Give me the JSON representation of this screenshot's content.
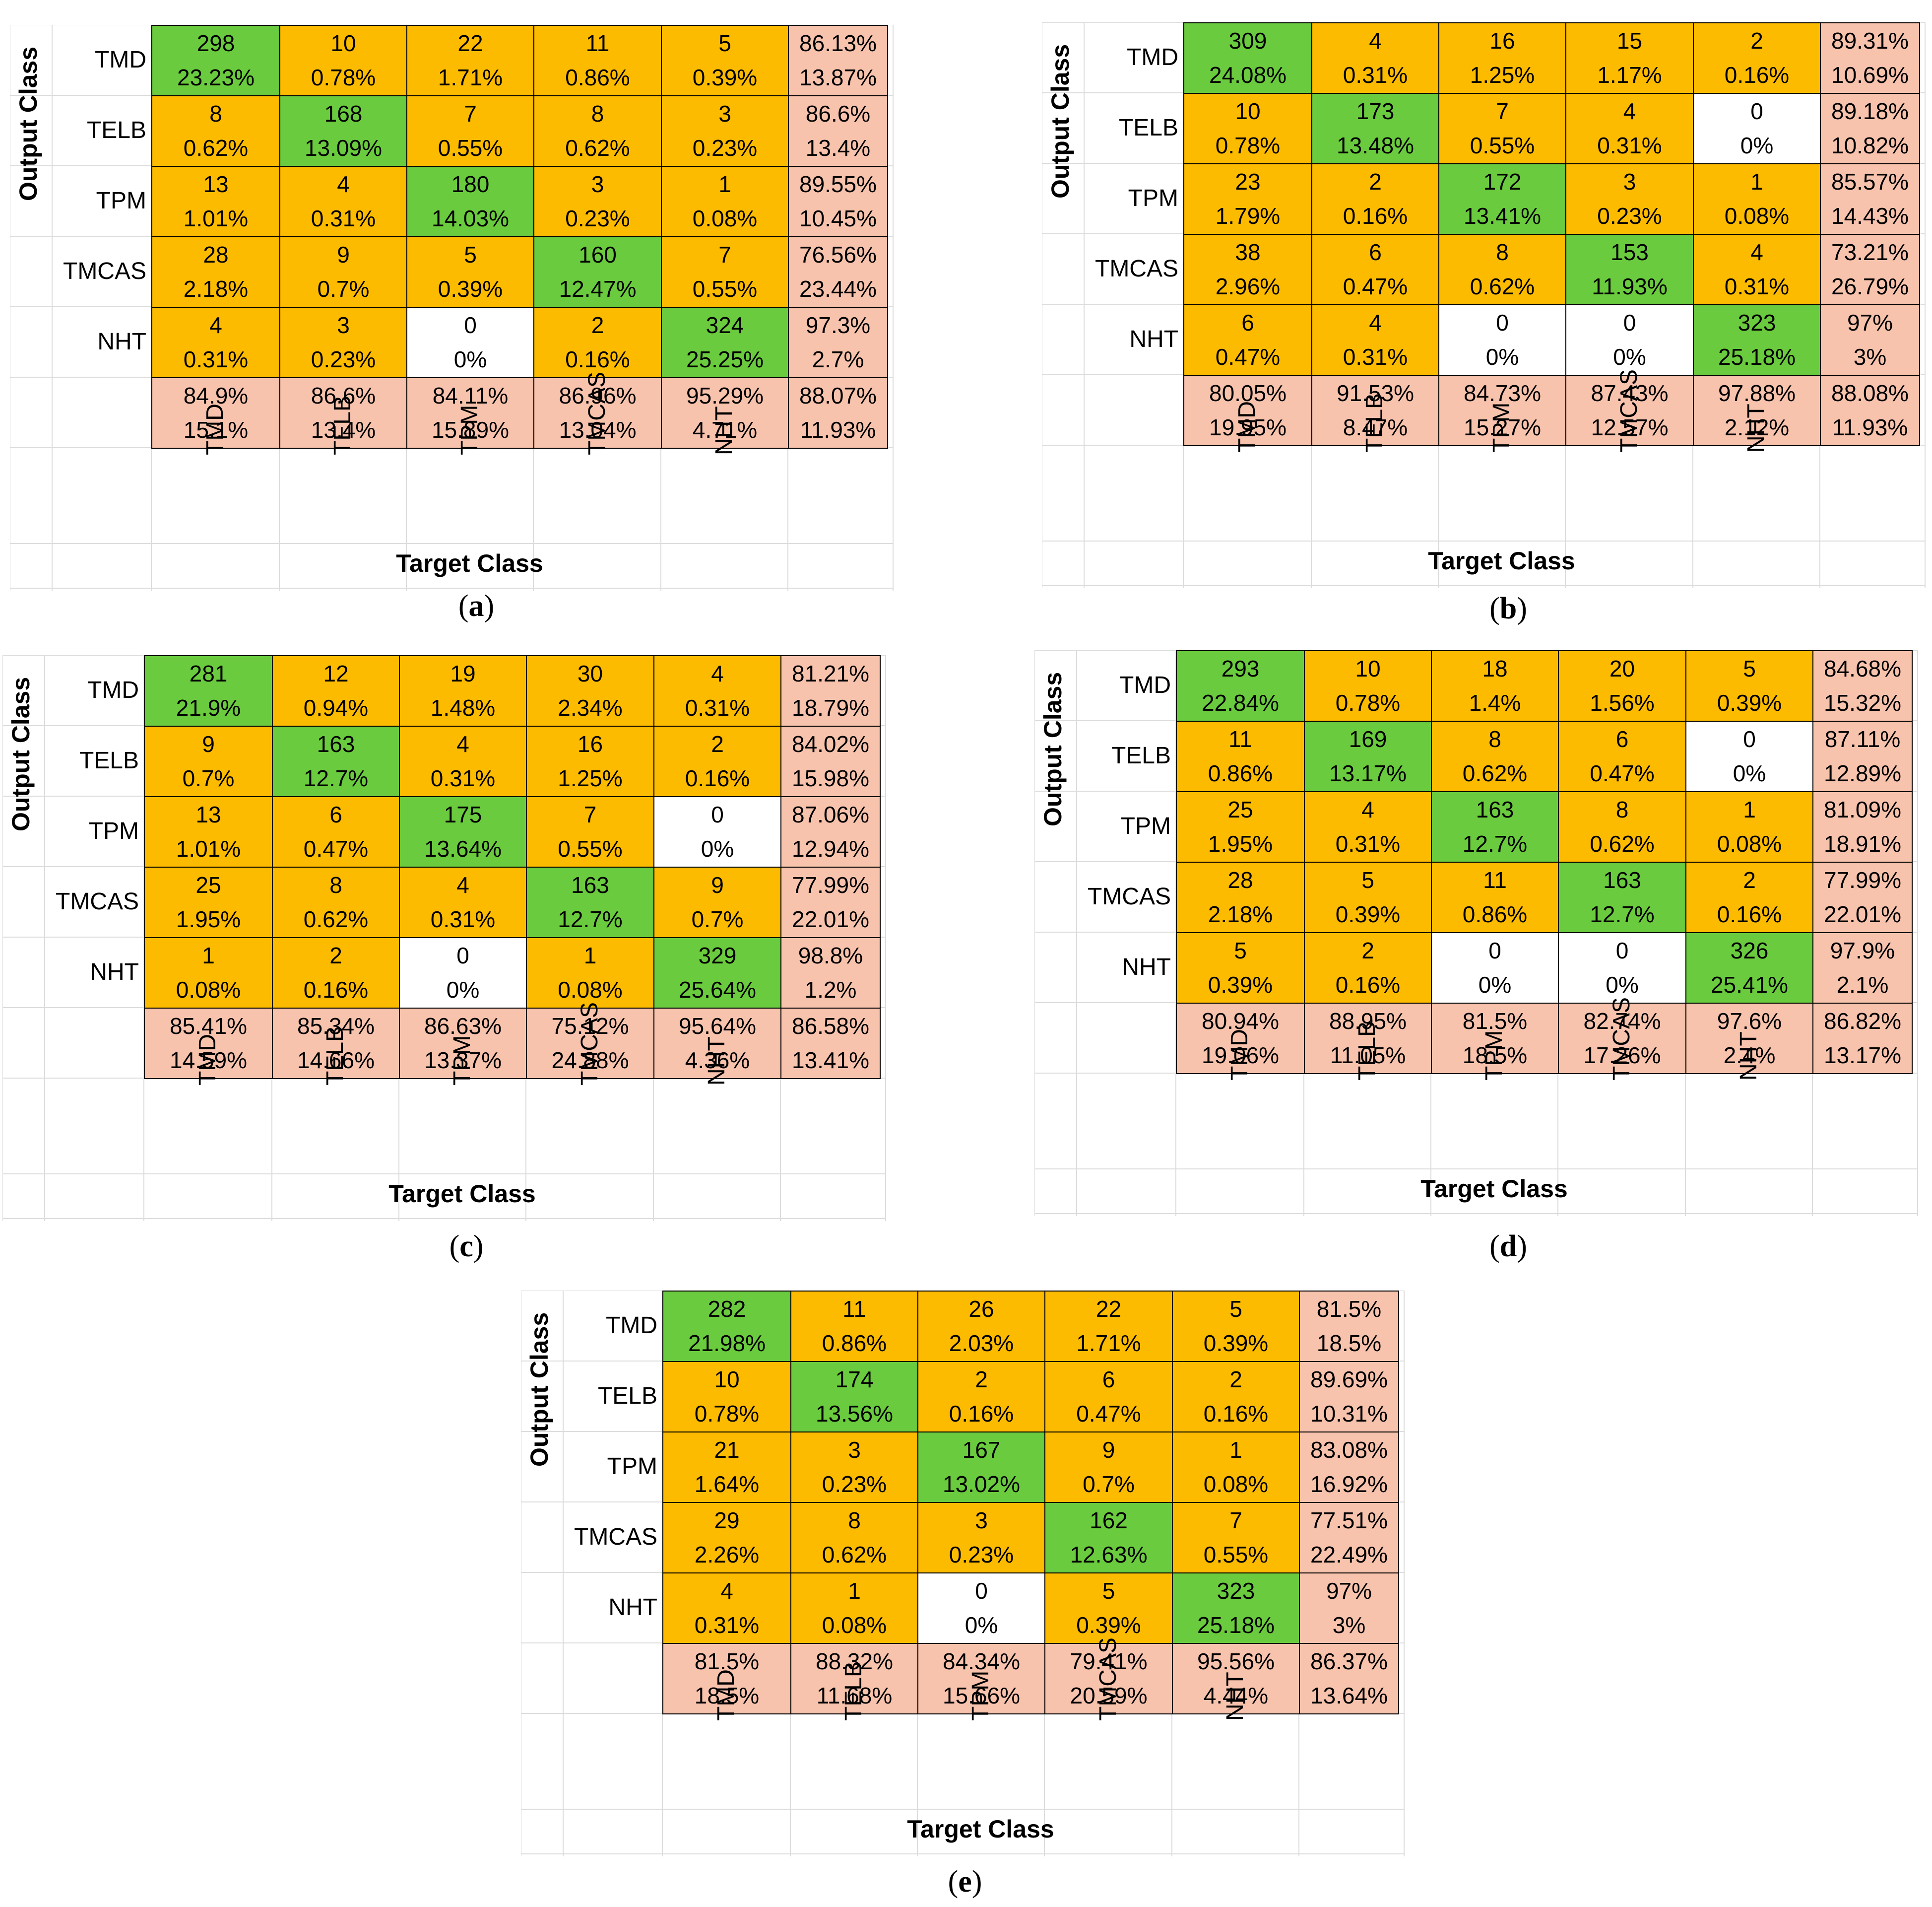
{
  "chart_data": [
    {
      "type": "table",
      "panel": "a",
      "xlabel": "Target Class",
      "ylabel": "Output Class",
      "classes": [
        "TMD",
        "TELB",
        "TPM",
        "TMCAS",
        "NHT"
      ],
      "rows": [
        {
          "label": "TMD",
          "counts": [
            298,
            10,
            22,
            11,
            5
          ],
          "percents": [
            "23.23%",
            "0.78%",
            "1.71%",
            "0.86%",
            "0.39%"
          ],
          "precision": [
            "86.13%",
            "13.87%"
          ]
        },
        {
          "label": "TELB",
          "counts": [
            8,
            168,
            7,
            8,
            3
          ],
          "percents": [
            "0.62%",
            "13.09%",
            "0.55%",
            "0.62%",
            "0.23%"
          ],
          "precision": [
            "86.6%",
            "13.4%"
          ]
        },
        {
          "label": "TPM",
          "counts": [
            13,
            4,
            180,
            3,
            1
          ],
          "percents": [
            "1.01%",
            "0.31%",
            "14.03%",
            "0.23%",
            "0.08%"
          ],
          "precision": [
            "89.55%",
            "10.45%"
          ]
        },
        {
          "label": "TMCAS",
          "counts": [
            28,
            9,
            5,
            160,
            7
          ],
          "percents": [
            "2.18%",
            "0.7%",
            "0.39%",
            "12.47%",
            "0.55%"
          ],
          "precision": [
            "76.56%",
            "23.44%"
          ]
        },
        {
          "label": "NHT",
          "counts": [
            4,
            3,
            0,
            2,
            324
          ],
          "percents": [
            "0.31%",
            "0.23%",
            "0%",
            "0.16%",
            "25.25%"
          ],
          "precision": [
            "97.3%",
            "2.7%"
          ]
        }
      ],
      "recall": [
        [
          "84.9%",
          "15.1%"
        ],
        [
          "86.6%",
          "13.4%"
        ],
        [
          "84.11%",
          "15.89%"
        ],
        [
          "86.96%",
          "13.04%"
        ],
        [
          "95.29%",
          "4.71%"
        ]
      ],
      "overall": [
        "88.07%",
        "11.93%"
      ]
    },
    {
      "type": "table",
      "panel": "b",
      "xlabel": "Target Class",
      "ylabel": "Output Class",
      "classes": [
        "TMD",
        "TELB",
        "TPM",
        "TMCAS",
        "NHT"
      ],
      "rows": [
        {
          "label": "TMD",
          "counts": [
            309,
            4,
            16,
            15,
            2
          ],
          "percents": [
            "24.08%",
            "0.31%",
            "1.25%",
            "1.17%",
            "0.16%"
          ],
          "precision": [
            "89.31%",
            "10.69%"
          ]
        },
        {
          "label": "TELB",
          "counts": [
            10,
            173,
            7,
            4,
            0
          ],
          "percents": [
            "0.78%",
            "13.48%",
            "0.55%",
            "0.31%",
            "0%"
          ],
          "precision": [
            "89.18%",
            "10.82%"
          ]
        },
        {
          "label": "TPM",
          "counts": [
            23,
            2,
            172,
            3,
            1
          ],
          "percents": [
            "1.79%",
            "0.16%",
            "13.41%",
            "0.23%",
            "0.08%"
          ],
          "precision": [
            "85.57%",
            "14.43%"
          ]
        },
        {
          "label": "TMCAS",
          "counts": [
            38,
            6,
            8,
            153,
            4
          ],
          "percents": [
            "2.96%",
            "0.47%",
            "0.62%",
            "11.93%",
            "0.31%"
          ],
          "precision": [
            "73.21%",
            "26.79%"
          ]
        },
        {
          "label": "NHT",
          "counts": [
            6,
            4,
            0,
            0,
            323
          ],
          "percents": [
            "0.47%",
            "0.31%",
            "0%",
            "0%",
            "25.18%"
          ],
          "precision": [
            "97%",
            "3%"
          ]
        }
      ],
      "recall": [
        [
          "80.05%",
          "19.95%"
        ],
        [
          "91.53%",
          "8.47%"
        ],
        [
          "84.73%",
          "15.27%"
        ],
        [
          "87.43%",
          "12.57%"
        ],
        [
          "97.88%",
          "2.12%"
        ]
      ],
      "overall": [
        "88.08%",
        "11.93%"
      ]
    },
    {
      "type": "table",
      "panel": "c",
      "xlabel": "Target Class",
      "ylabel": "Output Class",
      "classes": [
        "TMD",
        "TELB",
        "TPM",
        "TMCAS",
        "NHT"
      ],
      "rows": [
        {
          "label": "TMD",
          "counts": [
            281,
            12,
            19,
            30,
            4
          ],
          "percents": [
            "21.9%",
            "0.94%",
            "1.48%",
            "2.34%",
            "0.31%"
          ],
          "precision": [
            "81.21%",
            "18.79%"
          ]
        },
        {
          "label": "TELB",
          "counts": [
            9,
            163,
            4,
            16,
            2
          ],
          "percents": [
            "0.7%",
            "12.7%",
            "0.31%",
            "1.25%",
            "0.16%"
          ],
          "precision": [
            "84.02%",
            "15.98%"
          ]
        },
        {
          "label": "TPM",
          "counts": [
            13,
            6,
            175,
            7,
            0
          ],
          "percents": [
            "1.01%",
            "0.47%",
            "13.64%",
            "0.55%",
            "0%"
          ],
          "precision": [
            "87.06%",
            "12.94%"
          ]
        },
        {
          "label": "TMCAS",
          "counts": [
            25,
            8,
            4,
            163,
            9
          ],
          "percents": [
            "1.95%",
            "0.62%",
            "0.31%",
            "12.7%",
            "0.7%"
          ],
          "precision": [
            "77.99%",
            "22.01%"
          ]
        },
        {
          "label": "NHT",
          "counts": [
            1,
            2,
            0,
            1,
            329
          ],
          "percents": [
            "0.08%",
            "0.16%",
            "0%",
            "0.08%",
            "25.64%"
          ],
          "precision": [
            "98.8%",
            "1.2%"
          ]
        }
      ],
      "recall": [
        [
          "85.41%",
          "14.59%"
        ],
        [
          "85.34%",
          "14.66%"
        ],
        [
          "86.63%",
          "13.37%"
        ],
        [
          "75.12%",
          "24.88%"
        ],
        [
          "95.64%",
          "4.36%"
        ]
      ],
      "overall": [
        "86.58%",
        "13.41%"
      ]
    },
    {
      "type": "table",
      "panel": "d",
      "xlabel": "Target Class",
      "ylabel": "Output Class",
      "classes": [
        "TMD",
        "TELB",
        "TPM",
        "TMCAS",
        "NHT"
      ],
      "rows": [
        {
          "label": "TMD",
          "counts": [
            293,
            10,
            18,
            20,
            5
          ],
          "percents": [
            "22.84%",
            "0.78%",
            "1.4%",
            "1.56%",
            "0.39%"
          ],
          "precision": [
            "84.68%",
            "15.32%"
          ]
        },
        {
          "label": "TELB",
          "counts": [
            11,
            169,
            8,
            6,
            0
          ],
          "percents": [
            "0.86%",
            "13.17%",
            "0.62%",
            "0.47%",
            "0%"
          ],
          "precision": [
            "87.11%",
            "12.89%"
          ]
        },
        {
          "label": "TPM",
          "counts": [
            25,
            4,
            163,
            8,
            1
          ],
          "percents": [
            "1.95%",
            "0.31%",
            "12.7%",
            "0.62%",
            "0.08%"
          ],
          "precision": [
            "81.09%",
            "18.91%"
          ]
        },
        {
          "label": "TMCAS",
          "counts": [
            28,
            5,
            11,
            163,
            2
          ],
          "percents": [
            "2.18%",
            "0.39%",
            "0.86%",
            "12.7%",
            "0.16%"
          ],
          "precision": [
            "77.99%",
            "22.01%"
          ]
        },
        {
          "label": "NHT",
          "counts": [
            5,
            2,
            0,
            0,
            326
          ],
          "percents": [
            "0.39%",
            "0.16%",
            "0%",
            "0%",
            "25.41%"
          ],
          "precision": [
            "97.9%",
            "2.1%"
          ]
        }
      ],
      "recall": [
        [
          "80.94%",
          "19.06%"
        ],
        [
          "88.95%",
          "11.05%"
        ],
        [
          "81.5%",
          "18.5%"
        ],
        [
          "82.74%",
          "17.26%"
        ],
        [
          "97.6%",
          "2.4%"
        ]
      ],
      "overall": [
        "86.82%",
        "13.17%"
      ]
    },
    {
      "type": "table",
      "panel": "e",
      "xlabel": "Target Class",
      "ylabel": "Output Class",
      "classes": [
        "TMD",
        "TELB",
        "TPM",
        "TMCAS",
        "NHT"
      ],
      "rows": [
        {
          "label": "TMD",
          "counts": [
            282,
            11,
            26,
            22,
            5
          ],
          "percents": [
            "21.98%",
            "0.86%",
            "2.03%",
            "1.71%",
            "0.39%"
          ],
          "precision": [
            "81.5%",
            "18.5%"
          ]
        },
        {
          "label": "TELB",
          "counts": [
            10,
            174,
            2,
            6,
            2
          ],
          "percents": [
            "0.78%",
            "13.56%",
            "0.16%",
            "0.47%",
            "0.16%"
          ],
          "precision": [
            "89.69%",
            "10.31%"
          ]
        },
        {
          "label": "TPM",
          "counts": [
            21,
            3,
            167,
            9,
            1
          ],
          "percents": [
            "1.64%",
            "0.23%",
            "13.02%",
            "0.7%",
            "0.08%"
          ],
          "precision": [
            "83.08%",
            "16.92%"
          ]
        },
        {
          "label": "TMCAS",
          "counts": [
            29,
            8,
            3,
            162,
            7
          ],
          "percents": [
            "2.26%",
            "0.62%",
            "0.23%",
            "12.63%",
            "0.55%"
          ],
          "precision": [
            "77.51%",
            "22.49%"
          ]
        },
        {
          "label": "NHT",
          "counts": [
            4,
            1,
            0,
            5,
            323
          ],
          "percents": [
            "0.31%",
            "0.08%",
            "0%",
            "0.39%",
            "25.18%"
          ],
          "precision": [
            "97%",
            "3%"
          ]
        }
      ],
      "recall": [
        [
          "81.5%",
          "18.5%"
        ],
        [
          "88.32%",
          "11.68%"
        ],
        [
          "84.34%",
          "15.66%"
        ],
        [
          "79.41%",
          "20.59%"
        ],
        [
          "95.56%",
          "4.44%"
        ]
      ],
      "overall": [
        "86.37%",
        "13.64%"
      ]
    }
  ],
  "captions": [
    "(a)",
    "(b)",
    "(c)",
    "(d)",
    "(e)"
  ],
  "colors": {
    "diagonal": "#6acb3e",
    "off_diagonal": "#fdbb00",
    "zero": "#ffffff",
    "summary": "#f8c3ad",
    "border": "#000000",
    "gridline": "#dcdcdc"
  }
}
